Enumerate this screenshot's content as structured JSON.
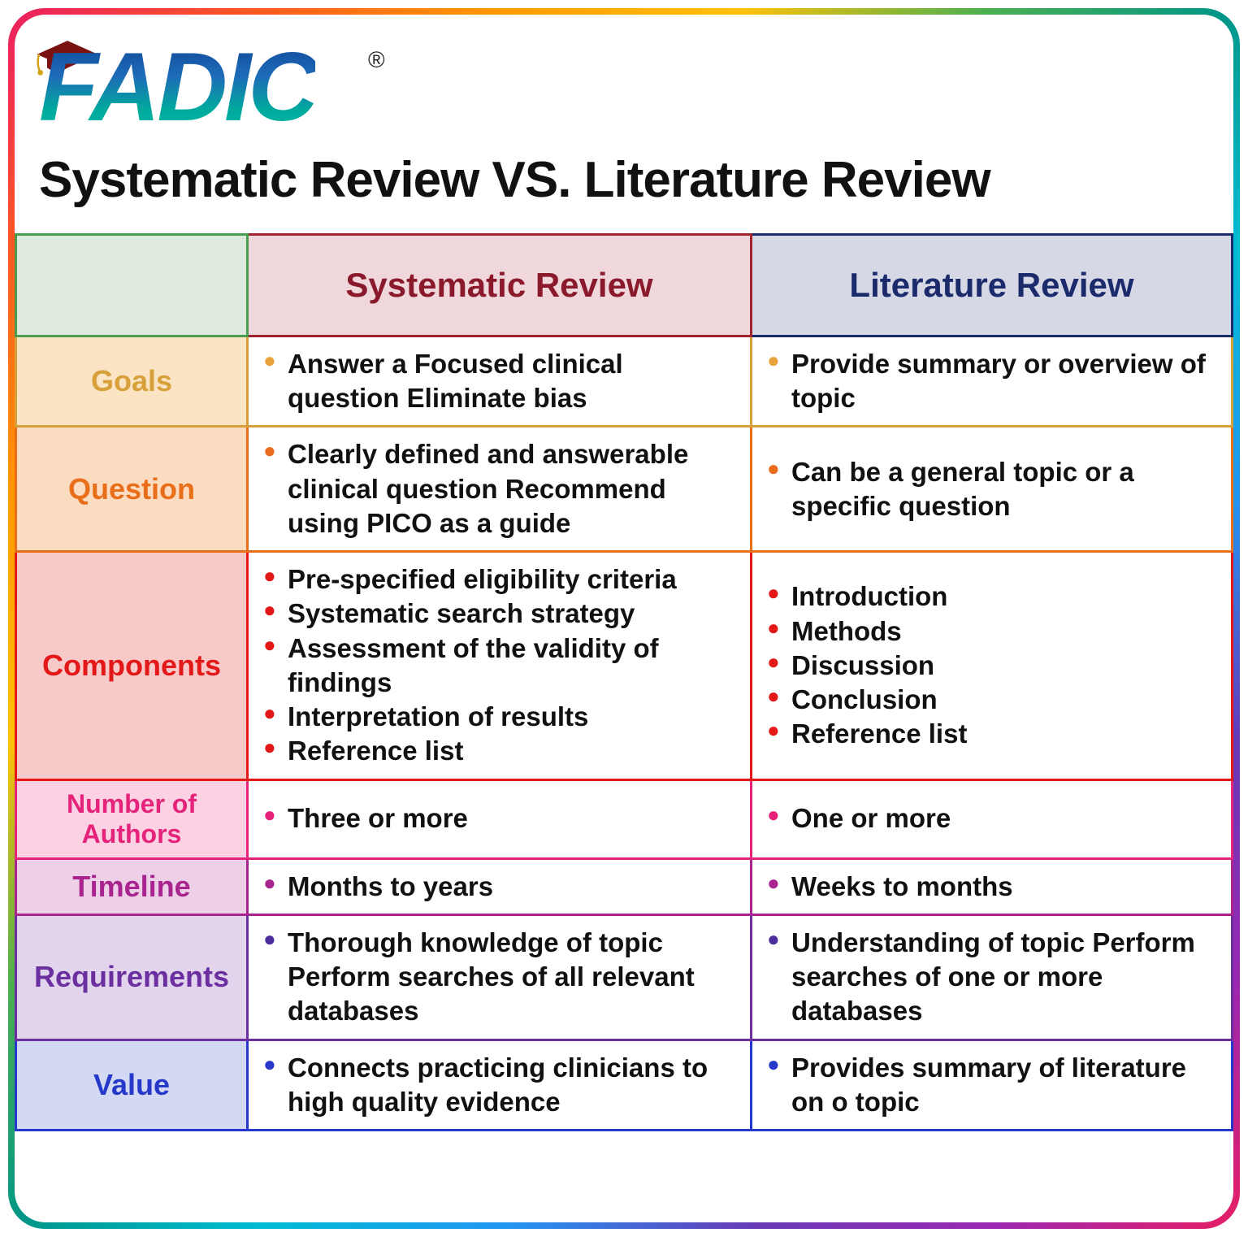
{
  "brand": "FADIC",
  "registered": "®",
  "title": "Systematic Review VS. Literature Review",
  "headers": {
    "col1": "",
    "col2": "Systematic Review",
    "col3": "Literature Review"
  },
  "rows": [
    {
      "key": "goals",
      "label": "Goals",
      "label_color": "#d8a03a",
      "label_bg": "#fae4c4",
      "border_color": "#d8a03a",
      "bullet_color": "#e8a33c",
      "sr": [
        "Answer a Focused clinical question Eliminate bias"
      ],
      "lr": [
        "Provide summary or overview of topic"
      ]
    },
    {
      "key": "question",
      "label": "Question",
      "label_color": "#e86e1a",
      "label_bg": "#fbdcc0",
      "border_color": "#e86e1a",
      "bullet_color": "#ea6a1e",
      "sr": [
        "Clearly defined and answerable clinical question Recommend using PICO as a guide"
      ],
      "lr": [
        "Can be a general topic or a specific question"
      ]
    },
    {
      "key": "components",
      "label": "Components",
      "label_color": "#e31818",
      "label_bg": "#f8c9c9",
      "border_color": "#e31818",
      "bullet_color": "#e31818",
      "sr": [
        "Pre-specified eligibility criteria",
        "Systematic search strategy",
        "Assessment of the validity of findings",
        "Interpretation of results",
        "Reference list"
      ],
      "lr": [
        "Introduction",
        "Methods",
        "Discussion",
        "Conclusion",
        "Reference list"
      ]
    },
    {
      "key": "authors",
      "label": "Number of Authors",
      "label_color": "#e6237a",
      "label_bg": "#fbd1e3",
      "border_color": "#e6237a",
      "bullet_color": "#e6237a",
      "sr": [
        "Three or more"
      ],
      "lr": [
        "One or more"
      ]
    },
    {
      "key": "timeline",
      "label": "Timeline",
      "label_color": "#a9248f",
      "label_bg": "#edd0e7",
      "border_color": "#a9248f",
      "bullet_color": "#a9248f",
      "sr": [
        "Months to years"
      ],
      "lr": [
        "Weeks to months"
      ]
    },
    {
      "key": "requirements",
      "label": "Requirements",
      "label_color": "#6b2fa0",
      "label_bg": "#e2d4ec",
      "border_color": "#6b2fa0",
      "bullet_color": "#4b2e9b",
      "sr": [
        "Thorough knowledge of topic Perform searches of all relevant databases"
      ],
      "sr_cont": [
        "",
        "",
        ""
      ],
      "lr": [
        "Understanding of topic Perform searches of one or more databases"
      ]
    },
    {
      "key": "value",
      "label": "Value",
      "label_color": "#2538c9",
      "label_bg": "#d4d9f3",
      "border_color": "#2538c9",
      "bullet_color": "#2538c9",
      "sr": [
        "Connects practicing clinicians to high quality evidence"
      ],
      "lr": [
        "Provides summary of literature on o topic"
      ]
    }
  ],
  "style": {
    "header2_bg": "#efd7db",
    "header2_border": "#a0232f",
    "header2_color": "#8a1a2b",
    "header3_bg": "#d6d8e6",
    "header3_border": "#1b2a6b",
    "header3_color": "#1b2a6b"
  }
}
